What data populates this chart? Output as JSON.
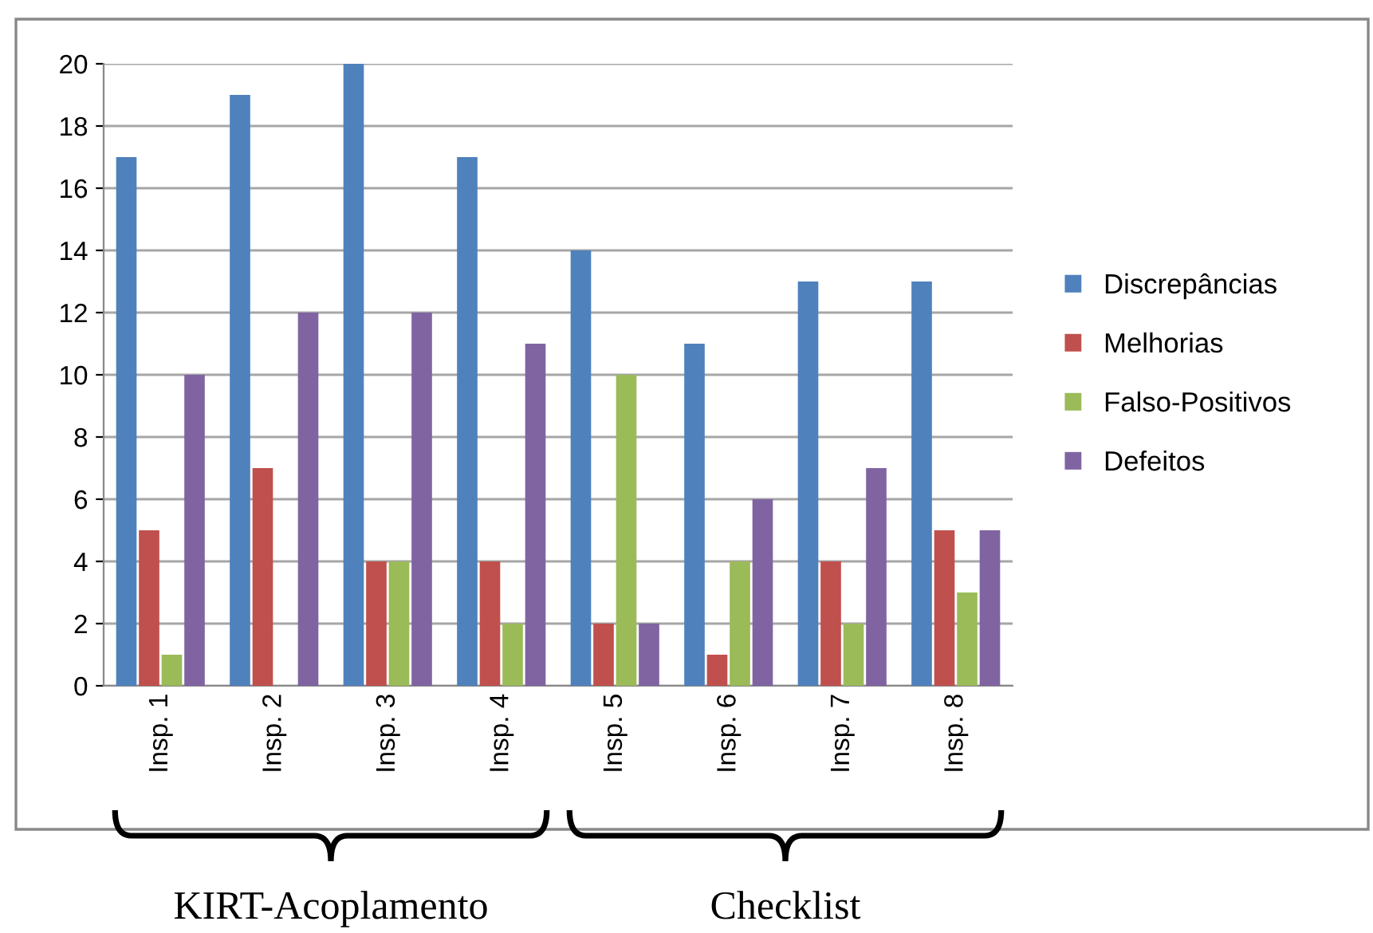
{
  "chart_data": {
    "type": "bar",
    "categories": [
      "Insp. 1",
      "Insp. 2",
      "Insp. 3",
      "Insp. 4",
      "Insp. 5",
      "Insp. 6",
      "Insp. 7",
      "Insp. 8"
    ],
    "series": [
      {
        "name": "Discrepâncias",
        "color": "#4f81bd",
        "values": [
          17,
          19,
          20,
          17,
          14,
          11,
          13,
          13
        ]
      },
      {
        "name": "Melhorias",
        "color": "#c0504d",
        "values": [
          5,
          7,
          4,
          4,
          2,
          1,
          4,
          5
        ]
      },
      {
        "name": "Falso-Positivos",
        "color": "#9bbb59",
        "values": [
          1,
          0,
          4,
          2,
          10,
          4,
          2,
          3
        ]
      },
      {
        "name": "Defeitos",
        "color": "#8064a2",
        "values": [
          10,
          12,
          12,
          11,
          2,
          6,
          7,
          5
        ]
      }
    ],
    "ylim": [
      0,
      20
    ],
    "yticks": [
      0,
      2,
      4,
      6,
      8,
      10,
      12,
      14,
      16,
      18,
      20
    ],
    "grid": "y",
    "legend": "right",
    "annotations": [
      "KIRT-Acoplamento",
      "Checklist"
    ]
  }
}
